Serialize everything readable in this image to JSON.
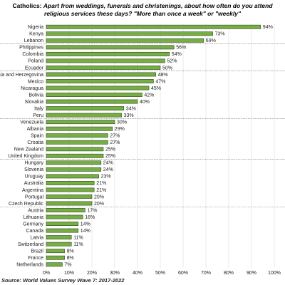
{
  "chart_data": {
    "type": "bar",
    "orientation": "horizontal",
    "title": "Catholics:",
    "subtitle": "Apart from weddings, funerals and christenings, about how often do you attend religious services these days? \"More than once a week\" or \"weekly\"",
    "source": "Source: World Values Survey Wave 7: 2017-2022",
    "categories": [
      "Nigeria",
      "Kenya",
      "Lebanon",
      "Philippines",
      "Colombia",
      "Poland",
      "Ecuador",
      "Bosnia and Herzegovina",
      "Mexico",
      "Nicaragua",
      "Bolivia",
      "Slovakia",
      "Italy",
      "Peru",
      "Venezuela",
      "Albania",
      "Spain",
      "Croatia",
      "New Zealand",
      "United Kingdom",
      "Hungary",
      "Slovenia",
      "Uruguay",
      "Australia",
      "Argentina",
      "Portugal",
      "Czech Republic",
      "Austria",
      "Lithuania",
      "Germany",
      "Canada",
      "Latvia",
      "Switzerland",
      "Brazil",
      "France",
      "Netherlands"
    ],
    "values": [
      94,
      73,
      69,
      56,
      54,
      52,
      50,
      48,
      47,
      45,
      42,
      40,
      34,
      33,
      30,
      29,
      27,
      27,
      25,
      25,
      24,
      24,
      23,
      21,
      21,
      20,
      20,
      17,
      16,
      14,
      14,
      11,
      11,
      8,
      8,
      7
    ],
    "value_labels": [
      "94%",
      "73%",
      "69%",
      "56%",
      "54%",
      "52%",
      "50%",
      "48%",
      "47%",
      "45%",
      "42%",
      "40%",
      "34%",
      "33%",
      "30%",
      "29%",
      "27%",
      "27%",
      "25%",
      "25%",
      "24%",
      "24%",
      "23%",
      "21%",
      "21%",
      "20%",
      "20%",
      "17%",
      "16%",
      "14%",
      "14%",
      "11%",
      "11%",
      "8%",
      "8%",
      "7%"
    ],
    "color": "#76ad45",
    "xlim": [
      0,
      100
    ],
    "xticks": [
      {
        "value": 0,
        "label": "0%"
      },
      {
        "value": 10,
        "label": "10%"
      },
      {
        "value": 20,
        "label": "20%"
      },
      {
        "value": 30,
        "label": "30%"
      },
      {
        "value": 40,
        "label": "40%"
      },
      {
        "value": 50,
        "label": "50%"
      },
      {
        "value": 60,
        "label": "60%"
      },
      {
        "value": 70,
        "label": "70%"
      },
      {
        "value": 80,
        "label": "80%"
      },
      {
        "value": 90,
        "label": "90%"
      },
      {
        "value": 100,
        "label": "100%"
      }
    ],
    "grid": true
  }
}
